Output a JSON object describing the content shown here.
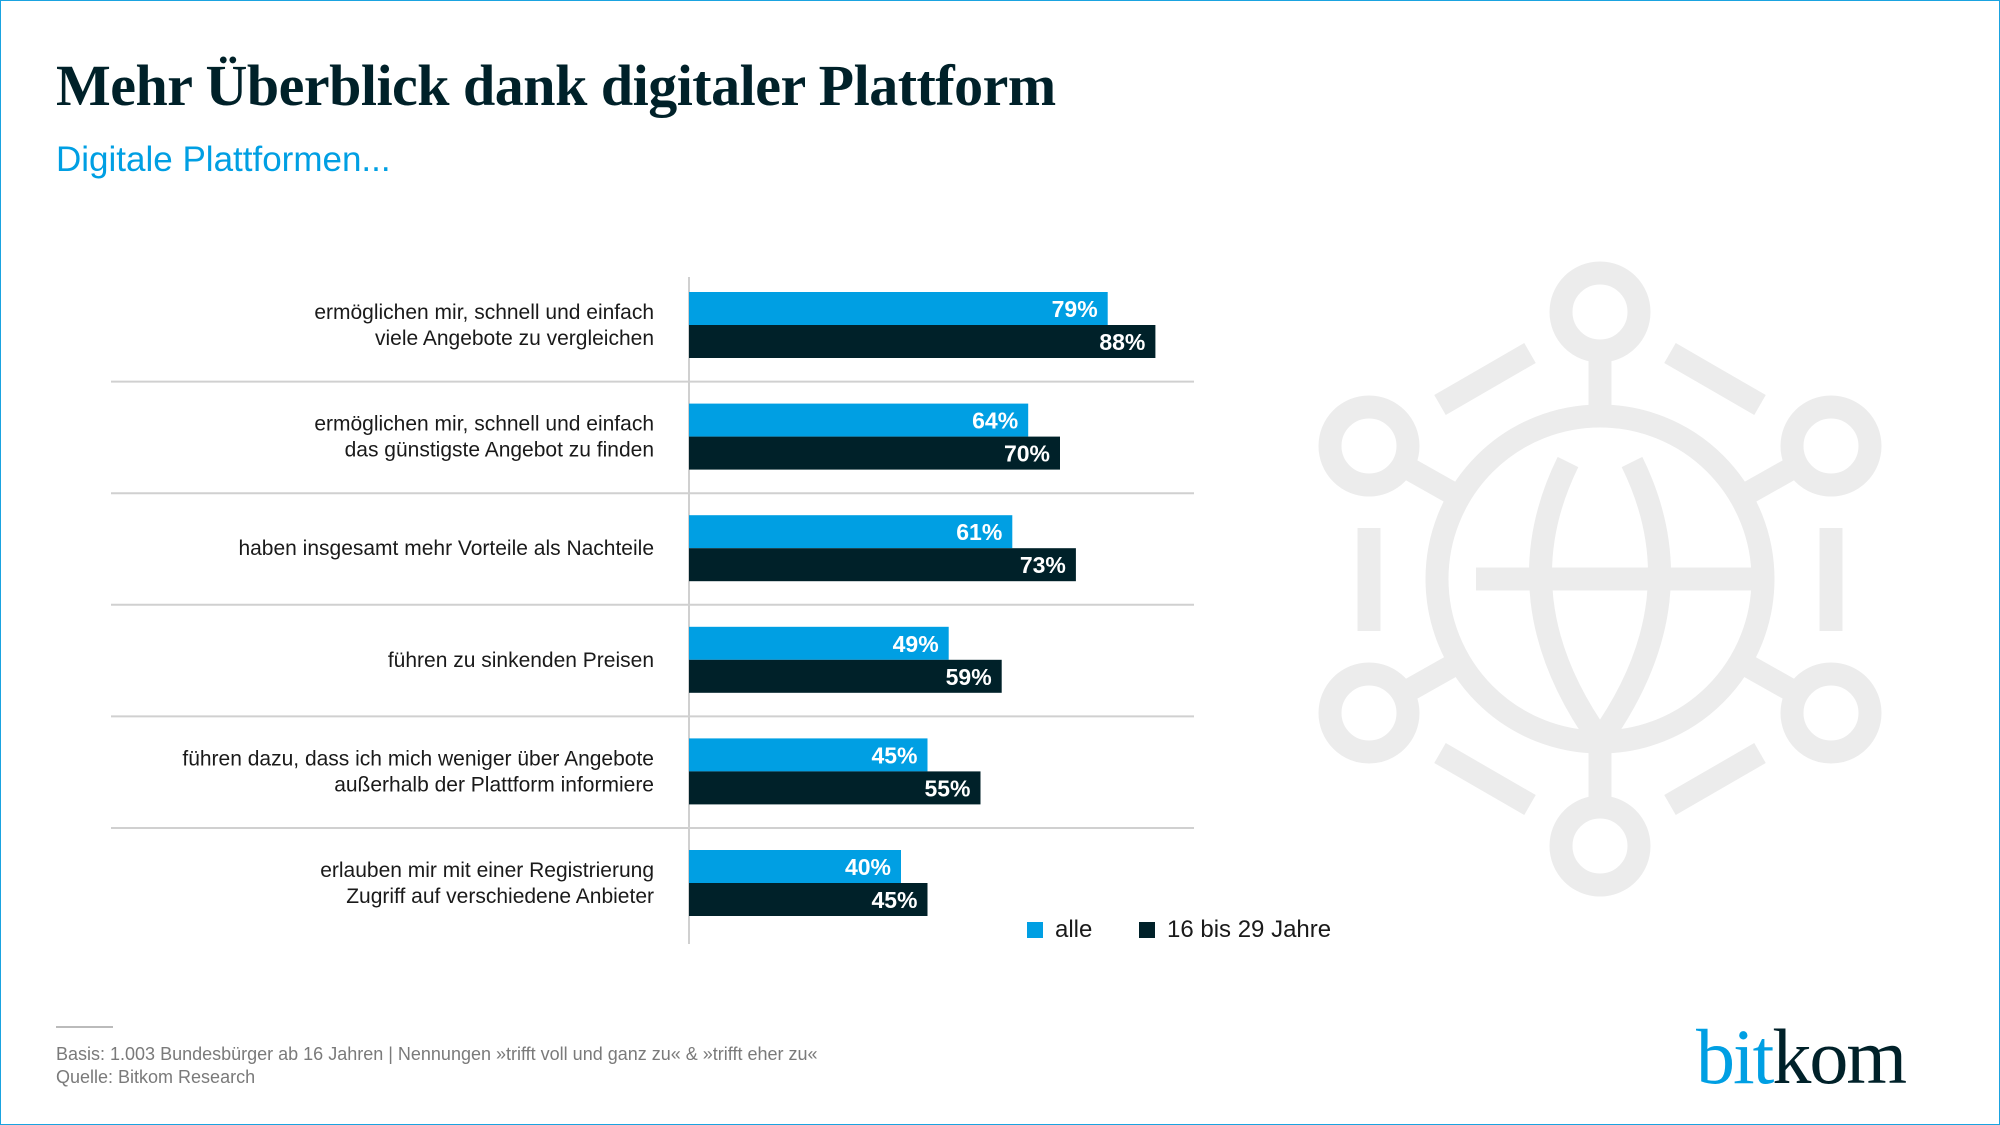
{
  "header": {
    "title": "Mehr Überblick dank digitaler Plattform",
    "subtitle": "Digitale Plattformen..."
  },
  "colors": {
    "alle": "#009fe3",
    "jung": "#002129",
    "icon": "#ececec"
  },
  "chart_data": {
    "type": "bar",
    "orientation": "horizontal",
    "title": "Mehr Überblick dank digitaler Plattform",
    "subtitle": "Digitale Plattformen...",
    "unit": "%",
    "xlim": [
      0,
      100
    ],
    "categories": [
      [
        "ermöglichen mir, schnell und einfach",
        "viele Angebote zu vergleichen"
      ],
      [
        "ermöglichen mir, schnell und einfach",
        "das günstigste Angebot zu finden"
      ],
      [
        "haben insgesamt mehr Vorteile als Nachteile"
      ],
      [
        "führen zu sinkenden Preisen"
      ],
      [
        "führen dazu, dass ich mich weniger über Angebote",
        "außerhalb der Plattform informiere"
      ],
      [
        "erlauben mir mit einer Registrierung",
        "Zugriff auf verschiedene Anbieter"
      ]
    ],
    "series": [
      {
        "name": "alle",
        "values": [
          79,
          64,
          61,
          49,
          45,
          40
        ]
      },
      {
        "name": "16 bis 29 Jahre",
        "values": [
          88,
          70,
          73,
          59,
          55,
          45
        ]
      }
    ],
    "legend": "bottom-right"
  },
  "legend": {
    "alle": "alle",
    "jung": "16 bis 29 Jahre"
  },
  "footer": {
    "basis": "Basis: 1.003 Bundesbürger ab 16 Jahren | Nennungen »trifft voll und ganz zu« & »trifft eher zu«",
    "quelle": "Quelle: Bitkom Research"
  },
  "logo": {
    "part1": "bit",
    "part2": "kom"
  }
}
